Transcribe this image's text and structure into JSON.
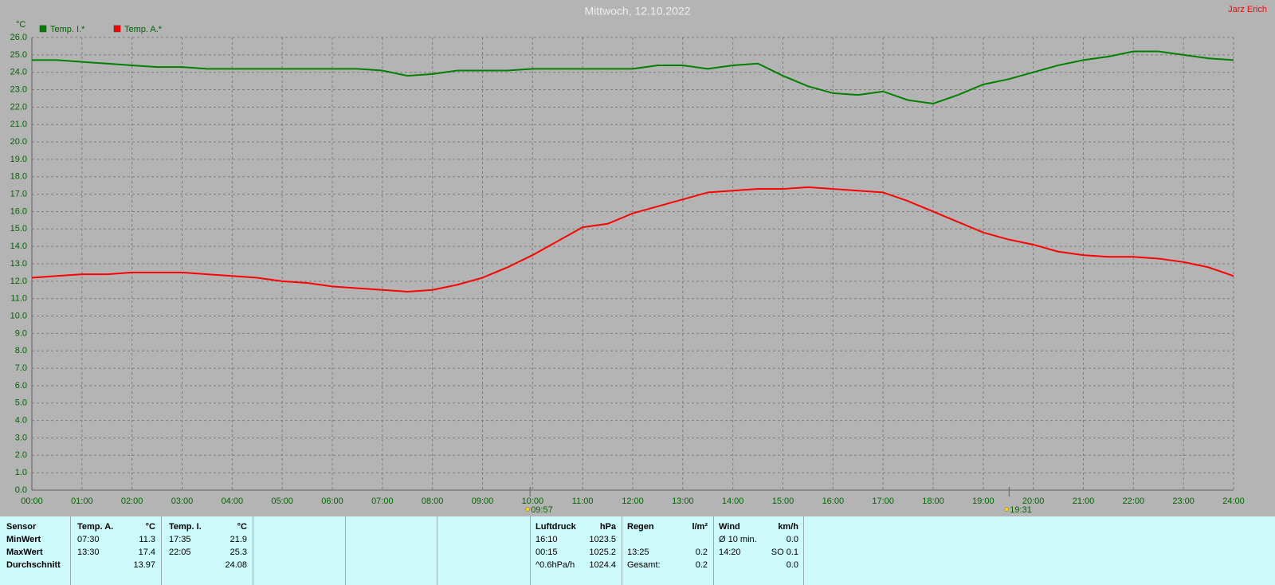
{
  "chart_data": {
    "type": "line",
    "title": "Mittwoch, 12.10.2022",
    "author": "Jarz Erich",
    "y_label": "°C",
    "grid": true,
    "legend": "top-left",
    "xlim": [
      0,
      24
    ],
    "ylim": [
      0,
      26
    ],
    "xticks": [
      {
        "value": 0,
        "label": "00:00"
      },
      {
        "value": 1,
        "label": "01:00"
      },
      {
        "value": 2,
        "label": "02:00"
      },
      {
        "value": 3,
        "label": "03:00"
      },
      {
        "value": 4,
        "label": "04:00"
      },
      {
        "value": 5,
        "label": "05:00"
      },
      {
        "value": 6,
        "label": "06:00"
      },
      {
        "value": 7,
        "label": "07:00"
      },
      {
        "value": 8,
        "label": "08:00"
      },
      {
        "value": 9,
        "label": "09:00"
      },
      {
        "value": 10,
        "label": "10:00"
      },
      {
        "value": 11,
        "label": "11:00"
      },
      {
        "value": 12,
        "label": "12:00"
      },
      {
        "value": 13,
        "label": "13:00"
      },
      {
        "value": 14,
        "label": "14:00"
      },
      {
        "value": 15,
        "label": "15:00"
      },
      {
        "value": 16,
        "label": "16:00"
      },
      {
        "value": 17,
        "label": "17:00"
      },
      {
        "value": 18,
        "label": "18:00"
      },
      {
        "value": 19,
        "label": "19:00"
      },
      {
        "value": 20,
        "label": "20:00"
      },
      {
        "value": 21,
        "label": "21:00"
      },
      {
        "value": 22,
        "label": "22:00"
      },
      {
        "value": 23,
        "label": "23:00"
      },
      {
        "value": 24,
        "label": "24:00"
      }
    ],
    "yticks": [
      {
        "value": 0,
        "label": "0.0"
      },
      {
        "value": 1,
        "label": "1.0"
      },
      {
        "value": 2,
        "label": "2.0"
      },
      {
        "value": 3,
        "label": "3.0"
      },
      {
        "value": 4,
        "label": "4.0"
      },
      {
        "value": 5,
        "label": "5.0"
      },
      {
        "value": 6,
        "label": "6.0"
      },
      {
        "value": 7,
        "label": "7.0"
      },
      {
        "value": 8,
        "label": "8.0"
      },
      {
        "value": 9,
        "label": "9.0"
      },
      {
        "value": 10,
        "label": "10.0"
      },
      {
        "value": 11,
        "label": "11.0"
      },
      {
        "value": 12,
        "label": "12.0"
      },
      {
        "value": 13,
        "label": "13.0"
      },
      {
        "value": 14,
        "label": "14.0"
      },
      {
        "value": 15,
        "label": "15.0"
      },
      {
        "value": 16,
        "label": "16.0"
      },
      {
        "value": 17,
        "label": "17.0"
      },
      {
        "value": 18,
        "label": "18.0"
      },
      {
        "value": 19,
        "label": "19.0"
      },
      {
        "value": 20,
        "label": "20.0"
      },
      {
        "value": 21,
        "label": "21.0"
      },
      {
        "value": 22,
        "label": "22.0"
      },
      {
        "value": 23,
        "label": "23.0"
      },
      {
        "value": 24,
        "label": "24.0"
      },
      {
        "value": 25,
        "label": "25.0"
      },
      {
        "value": 26,
        "label": "26.0"
      }
    ],
    "annotations": [
      "09:57",
      "19:31"
    ],
    "x": [
      0,
      0.5,
      1,
      1.5,
      2,
      2.5,
      3,
      3.5,
      4,
      4.5,
      5,
      5.5,
      6,
      6.5,
      7,
      7.5,
      8,
      8.5,
      9,
      9.5,
      10,
      10.5,
      11,
      11.5,
      12,
      12.5,
      13,
      13.5,
      14,
      14.5,
      15,
      15.5,
      16,
      16.5,
      17,
      17.5,
      18,
      18.5,
      19,
      19.5,
      20,
      20.5,
      21,
      21.5,
      22,
      22.5,
      23,
      23.5,
      24
    ],
    "series": [
      {
        "name": "Temp. I.*",
        "color": "#008000",
        "values": [
          24.7,
          24.7,
          24.6,
          24.5,
          24.4,
          24.3,
          24.3,
          24.2,
          24.2,
          24.2,
          24.2,
          24.2,
          24.2,
          24.2,
          24.1,
          23.8,
          23.9,
          24.1,
          24.1,
          24.1,
          24.2,
          24.2,
          24.2,
          24.2,
          24.2,
          24.4,
          24.4,
          24.2,
          24.4,
          24.5,
          23.8,
          23.2,
          22.8,
          22.7,
          22.9,
          22.4,
          22.2,
          22.7,
          23.3,
          23.6,
          24.0,
          24.4,
          24.7,
          24.9,
          25.2,
          25.2,
          25.0,
          24.8,
          24.7
        ]
      },
      {
        "name": "Temp. A.*",
        "color": "#ff0000",
        "values": [
          12.2,
          12.3,
          12.4,
          12.4,
          12.5,
          12.5,
          12.5,
          12.4,
          12.3,
          12.2,
          12.0,
          11.9,
          11.7,
          11.6,
          11.5,
          11.4,
          11.5,
          11.8,
          12.2,
          12.8,
          13.5,
          14.3,
          15.1,
          15.3,
          15.9,
          16.3,
          16.7,
          17.1,
          17.2,
          17.3,
          17.3,
          17.4,
          17.3,
          17.2,
          17.1,
          16.6,
          16.0,
          15.4,
          14.8,
          14.4,
          14.1,
          13.7,
          13.5,
          13.4,
          13.4,
          13.3,
          13.1,
          12.8,
          12.3
        ]
      }
    ]
  },
  "table": {
    "header": [
      "Sensor",
      "Temp. A.",
      "°C",
      "Temp. I.",
      "°C",
      "Luftdruck",
      "hPa",
      "Regen",
      "l/m²",
      "Wind",
      "km/h"
    ],
    "rows": [
      [
        "MinWert",
        "07:30",
        "11.3",
        "17:35",
        "21.9",
        "16:10",
        "1023.5",
        null,
        null,
        "Ø 10 min.",
        "0.0"
      ],
      [
        "MaxWert",
        "13:30",
        "17.4",
        "22:05",
        "25.3",
        "00:15",
        "1025.2",
        "13:25",
        "0.2",
        "14:20",
        "SO 0.1"
      ],
      [
        "Durchschnitt",
        null,
        "13.97",
        null,
        "24.08",
        "^0.6hPa/h",
        "1024.4",
        "Gesamt:",
        "0.2",
        null,
        "0.0"
      ]
    ]
  }
}
